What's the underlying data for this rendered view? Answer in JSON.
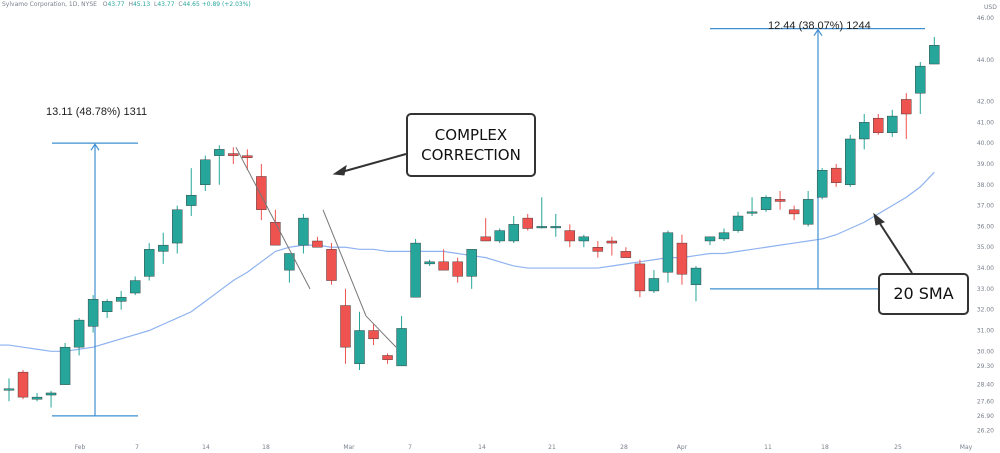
{
  "header": {
    "symbol_text": "Sylvamo Corporation, 1D, NYSE",
    "ohlc": [
      {
        "key": "O",
        "value": "43.77"
      },
      {
        "key": "H",
        "value": "45.13"
      },
      {
        "key": "L",
        "value": "43.77"
      },
      {
        "key": "C",
        "value": "44.65"
      }
    ],
    "change": "+0.89 (+2.03%)",
    "currency": "USD"
  },
  "annotations": {
    "complex_correction_line1": "COMPLEX",
    "complex_correction_line2": "CORRECTION",
    "sma_label": "20 SMA",
    "measure_left": "13.11 (48.78%) 1311",
    "measure_right": "12.44 (38.07%) 1244"
  },
  "colors": {
    "up": "#26a69a",
    "down": "#ef5350",
    "sma": "#8fb3f0",
    "measure": "#3f8fd2",
    "arrow": "#333333"
  },
  "chart_data": {
    "type": "candlestick",
    "ylim": [
      25.5,
      46.3
    ],
    "ytick_labels": [
      "46.00",
      "44.00",
      "42.00",
      "41.00",
      "40.00",
      "39.00",
      "38.00",
      "37.00",
      "36.00",
      "35.00",
      "34.00",
      "33.00",
      "32.00",
      "31.00",
      "30.00",
      "29.30",
      "28.40",
      "27.60",
      "26.90",
      "26.20"
    ],
    "xtick_labels": [
      "Feb",
      "7",
      "14",
      "18",
      "Mar",
      "7",
      "14",
      "21",
      "28",
      "Apr",
      "11",
      "18",
      "25",
      "May"
    ],
    "candles": [
      {
        "o": 28.2,
        "h": 28.7,
        "l": 27.6,
        "c": 28.2
      },
      {
        "o": 29.0,
        "h": 29.1,
        "l": 27.7,
        "c": 27.8
      },
      {
        "o": 27.7,
        "h": 28.0,
        "l": 27.6,
        "c": 27.8
      },
      {
        "o": 27.9,
        "h": 28.1,
        "l": 27.3,
        "c": 28.0
      },
      {
        "o": 28.4,
        "h": 30.4,
        "l": 28.4,
        "c": 30.2
      },
      {
        "o": 30.2,
        "h": 31.6,
        "l": 29.8,
        "c": 31.5
      },
      {
        "o": 31.2,
        "h": 32.7,
        "l": 30.9,
        "c": 32.5
      },
      {
        "o": 31.9,
        "h": 32.5,
        "l": 31.6,
        "c": 32.4
      },
      {
        "o": 32.4,
        "h": 32.9,
        "l": 32.0,
        "c": 32.6
      },
      {
        "o": 32.8,
        "h": 33.6,
        "l": 32.7,
        "c": 33.4
      },
      {
        "o": 33.6,
        "h": 35.2,
        "l": 33.4,
        "c": 34.9
      },
      {
        "o": 34.8,
        "h": 35.7,
        "l": 34.2,
        "c": 35.1
      },
      {
        "o": 35.2,
        "h": 37.0,
        "l": 34.7,
        "c": 36.8
      },
      {
        "o": 37.0,
        "h": 38.8,
        "l": 36.5,
        "c": 37.5
      },
      {
        "o": 38.0,
        "h": 39.4,
        "l": 37.7,
        "c": 39.2
      },
      {
        "o": 39.4,
        "h": 39.9,
        "l": 38.0,
        "c": 39.7
      },
      {
        "o": 39.5,
        "h": 39.8,
        "l": 39.0,
        "c": 39.4
      },
      {
        "o": 39.4,
        "h": 39.7,
        "l": 38.7,
        "c": 39.3
      },
      {
        "o": 38.4,
        "h": 39.0,
        "l": 36.3,
        "c": 36.8
      },
      {
        "o": 36.2,
        "h": 36.8,
        "l": 35.1,
        "c": 35.1
      },
      {
        "o": 33.9,
        "h": 34.7,
        "l": 33.3,
        "c": 34.7
      },
      {
        "o": 35.1,
        "h": 36.6,
        "l": 34.7,
        "c": 36.4
      },
      {
        "o": 35.3,
        "h": 35.5,
        "l": 35.0,
        "c": 35.0
      },
      {
        "o": 34.9,
        "h": 35.2,
        "l": 33.2,
        "c": 33.4
      },
      {
        "o": 32.2,
        "h": 33.0,
        "l": 29.4,
        "c": 30.2
      },
      {
        "o": 29.4,
        "h": 31.9,
        "l": 29.1,
        "c": 31.0
      },
      {
        "o": 31.0,
        "h": 31.3,
        "l": 30.3,
        "c": 30.6
      },
      {
        "o": 29.8,
        "h": 29.9,
        "l": 29.4,
        "c": 29.6
      },
      {
        "o": 29.3,
        "h": 31.7,
        "l": 29.3,
        "c": 31.1
      },
      {
        "o": 32.6,
        "h": 35.4,
        "l": 32.6,
        "c": 35.2
      },
      {
        "o": 34.2,
        "h": 34.4,
        "l": 34.1,
        "c": 34.3
      },
      {
        "o": 34.3,
        "h": 34.9,
        "l": 34.0,
        "c": 33.9
      },
      {
        "o": 34.3,
        "h": 34.5,
        "l": 33.3,
        "c": 33.6
      },
      {
        "o": 33.6,
        "h": 34.8,
        "l": 33.0,
        "c": 34.9
      },
      {
        "o": 35.5,
        "h": 36.4,
        "l": 35.3,
        "c": 35.3
      },
      {
        "o": 35.3,
        "h": 35.9,
        "l": 35.2,
        "c": 35.8
      },
      {
        "o": 35.3,
        "h": 36.5,
        "l": 35.2,
        "c": 36.1
      },
      {
        "o": 36.4,
        "h": 36.6,
        "l": 35.8,
        "c": 35.9
      },
      {
        "o": 36.0,
        "h": 37.4,
        "l": 35.9,
        "c": 36.0
      },
      {
        "o": 36.0,
        "h": 36.6,
        "l": 35.5,
        "c": 36.0
      },
      {
        "o": 35.8,
        "h": 36.1,
        "l": 35.0,
        "c": 35.3
      },
      {
        "o": 35.3,
        "h": 35.6,
        "l": 35.0,
        "c": 35.5
      },
      {
        "o": 35.0,
        "h": 35.3,
        "l": 34.5,
        "c": 34.8
      },
      {
        "o": 35.3,
        "h": 35.5,
        "l": 34.6,
        "c": 35.2
      },
      {
        "o": 34.8,
        "h": 35.0,
        "l": 34.5,
        "c": 34.5
      },
      {
        "o": 34.2,
        "h": 34.4,
        "l": 32.6,
        "c": 32.9
      },
      {
        "o": 32.9,
        "h": 33.9,
        "l": 32.8,
        "c": 33.5
      },
      {
        "o": 33.8,
        "h": 35.8,
        "l": 33.3,
        "c": 35.7
      },
      {
        "o": 35.2,
        "h": 35.6,
        "l": 33.2,
        "c": 33.7
      },
      {
        "o": 33.2,
        "h": 34.1,
        "l": 32.4,
        "c": 34.0
      },
      {
        "o": 35.3,
        "h": 35.5,
        "l": 35.1,
        "c": 35.5
      },
      {
        "o": 35.4,
        "h": 35.9,
        "l": 35.3,
        "c": 35.7
      },
      {
        "o": 35.8,
        "h": 36.7,
        "l": 35.7,
        "c": 36.5
      },
      {
        "o": 36.7,
        "h": 37.4,
        "l": 36.5,
        "c": 36.7
      },
      {
        "o": 36.8,
        "h": 37.5,
        "l": 36.7,
        "c": 37.4
      },
      {
        "o": 37.3,
        "h": 37.7,
        "l": 36.8,
        "c": 37.2
      },
      {
        "o": 36.8,
        "h": 37.0,
        "l": 36.3,
        "c": 36.6
      },
      {
        "o": 36.1,
        "h": 37.7,
        "l": 36.0,
        "c": 37.3
      },
      {
        "o": 37.4,
        "h": 38.8,
        "l": 37.3,
        "c": 38.7
      },
      {
        "o": 38.8,
        "h": 39.0,
        "l": 37.9,
        "c": 38.1
      },
      {
        "o": 38.0,
        "h": 40.4,
        "l": 37.9,
        "c": 40.2
      },
      {
        "o": 40.2,
        "h": 41.4,
        "l": 39.7,
        "c": 41.0
      },
      {
        "o": 41.2,
        "h": 41.4,
        "l": 40.4,
        "c": 40.5
      },
      {
        "o": 40.5,
        "h": 41.6,
        "l": 40.3,
        "c": 41.3
      },
      {
        "o": 42.1,
        "h": 42.4,
        "l": 40.2,
        "c": 41.4
      },
      {
        "o": 42.4,
        "h": 43.9,
        "l": 41.4,
        "c": 43.7
      },
      {
        "o": 43.8,
        "h": 45.1,
        "l": 43.8,
        "c": 44.7
      }
    ],
    "sma_20": [
      30.3,
      30.2,
      30.1,
      30.0,
      30.0,
      30.1,
      30.2,
      30.4,
      30.6,
      30.8,
      31.0,
      31.3,
      31.6,
      31.9,
      32.4,
      32.9,
      33.4,
      33.8,
      34.3,
      34.8,
      35.0,
      35.1,
      35.1,
      35.0,
      35.0,
      34.9,
      34.9,
      34.8,
      34.8,
      34.8,
      34.8,
      34.8,
      34.7,
      34.6,
      34.5,
      34.3,
      34.1,
      34.0,
      34.0,
      34.0,
      34.0,
      34.0,
      34.0,
      34.1,
      34.2,
      34.3,
      34.4,
      34.5,
      34.5,
      34.6,
      34.7,
      34.7,
      34.8,
      34.9,
      35.0,
      35.1,
      35.2,
      35.3,
      35.4,
      35.6,
      35.9,
      36.2,
      36.6,
      37.0,
      37.4,
      37.9,
      38.6
    ],
    "measures": [
      {
        "label": "13.11 (48.78%) 1311",
        "from": 26.9,
        "to": 40.0
      },
      {
        "label": "12.44 (38.07%) 1244",
        "from": 33.0,
        "to": 45.5
      }
    ]
  }
}
